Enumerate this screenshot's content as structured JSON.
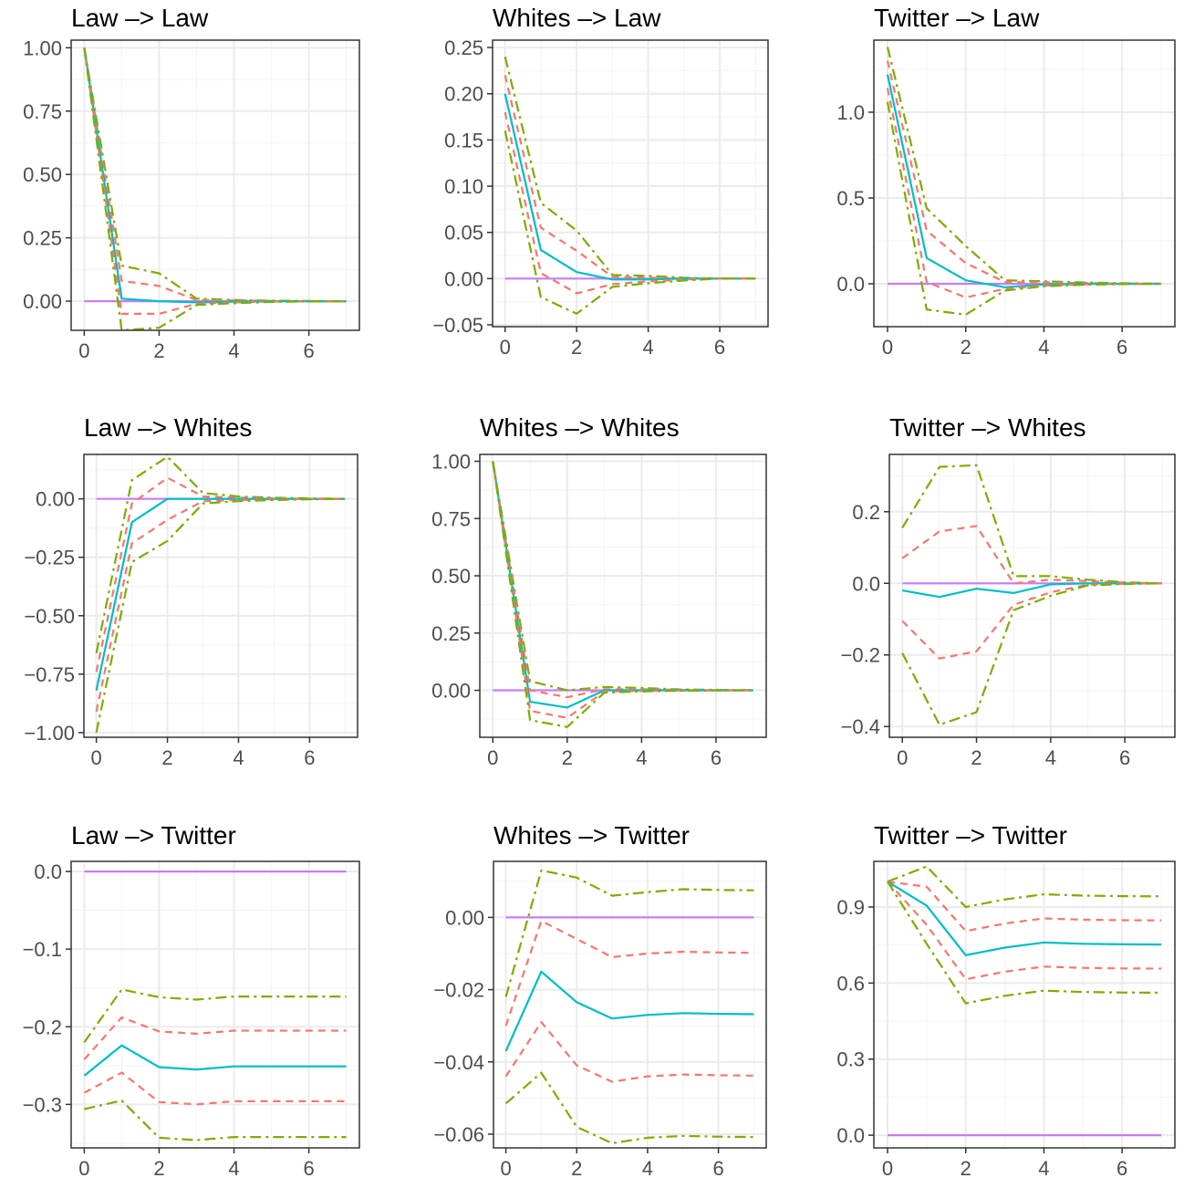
{
  "chart_data": [
    {
      "type": "line",
      "title": "Law –> Law",
      "x": [
        0,
        1,
        2,
        3,
        4,
        5,
        6,
        7
      ],
      "xticks": [
        0,
        2,
        4,
        6
      ],
      "xlim": [
        -0.35,
        7.35
      ],
      "ylim": [
        -0.115,
        1.03
      ],
      "yticks": [
        1.0,
        0.75,
        0.5,
        0.25,
        0.0
      ],
      "ytick_labels": [
        "1.00",
        "0.75",
        "0.50",
        "0.25",
        "0.00"
      ],
      "series": [
        {
          "role": "zero",
          "values": [
            0,
            0,
            0,
            0,
            0,
            0,
            0,
            0
          ]
        },
        {
          "role": "upper-outer",
          "values": [
            1.0,
            0.14,
            0.11,
            0.01,
            0.005,
            0.002,
            0.001,
            0
          ]
        },
        {
          "role": "upper-inner",
          "values": [
            1.0,
            0.08,
            0.06,
            0.005,
            0.003,
            0.001,
            0,
            0
          ]
        },
        {
          "role": "point",
          "values": [
            1.0,
            0.01,
            0,
            -0.005,
            -0.002,
            0,
            0,
            0
          ]
        },
        {
          "role": "lower-inner",
          "values": [
            1.0,
            -0.05,
            -0.05,
            -0.01,
            -0.005,
            -0.002,
            -0.001,
            0
          ]
        },
        {
          "role": "lower-outer",
          "values": [
            1.0,
            -0.115,
            -0.105,
            -0.015,
            -0.008,
            -0.003,
            -0.001,
            0
          ]
        }
      ]
    },
    {
      "type": "line",
      "title": "Whites –> Law",
      "x": [
        0,
        1,
        2,
        3,
        4,
        5,
        6,
        7
      ],
      "xticks": [
        0,
        2,
        4,
        6
      ],
      "xlim": [
        -0.35,
        7.35
      ],
      "ylim": [
        -0.052,
        0.258
      ],
      "yticks": [
        0.25,
        0.2,
        0.15,
        0.1,
        0.05,
        0.0,
        -0.05
      ],
      "ytick_labels": [
        "0.25",
        "0.20",
        "0.15",
        "0.10",
        "0.05",
        "0.00",
        "−0.05"
      ],
      "series": [
        {
          "role": "zero",
          "values": [
            0,
            0,
            0,
            0,
            0,
            0,
            0,
            0
          ]
        },
        {
          "role": "upper-outer",
          "values": [
            0.24,
            0.082,
            0.052,
            0.004,
            0.003,
            0.001,
            0,
            0
          ]
        },
        {
          "role": "upper-inner",
          "values": [
            0.22,
            0.055,
            0.03,
            0.002,
            0.001,
            0,
            0,
            0
          ]
        },
        {
          "role": "point",
          "values": [
            0.2,
            0.031,
            0.007,
            -0.001,
            -0.001,
            0,
            0,
            0
          ]
        },
        {
          "role": "lower-inner",
          "values": [
            0.18,
            0.006,
            -0.016,
            -0.006,
            -0.003,
            -0.001,
            0,
            0
          ]
        },
        {
          "role": "lower-outer",
          "values": [
            0.16,
            -0.02,
            -0.038,
            -0.009,
            -0.005,
            -0.002,
            0,
            0
          ]
        }
      ]
    },
    {
      "type": "line",
      "title": "Twitter –> Law",
      "x": [
        0,
        1,
        2,
        3,
        4,
        5,
        6,
        7
      ],
      "xticks": [
        0,
        2,
        4,
        6
      ],
      "xlim": [
        -0.35,
        7.35
      ],
      "ylim": [
        -0.25,
        1.42
      ],
      "yticks": [
        1.0,
        0.5,
        0.0
      ],
      "ytick_labels": [
        "1.0",
        "0.5",
        "0.0"
      ],
      "series": [
        {
          "role": "zero",
          "values": [
            0,
            0,
            0,
            0,
            0,
            0,
            0,
            0
          ]
        },
        {
          "role": "upper-outer",
          "values": [
            1.38,
            0.44,
            0.22,
            0.02,
            0.015,
            0.008,
            0.003,
            0
          ]
        },
        {
          "role": "upper-inner",
          "values": [
            1.3,
            0.31,
            0.12,
            0.01,
            0.008,
            0.004,
            0.001,
            0
          ]
        },
        {
          "role": "point",
          "values": [
            1.22,
            0.15,
            0.02,
            -0.02,
            -0.005,
            0,
            0,
            0
          ]
        },
        {
          "role": "lower-inner",
          "values": [
            1.14,
            0.01,
            -0.08,
            -0.03,
            -0.01,
            -0.004,
            -0.001,
            0
          ]
        },
        {
          "role": "lower-outer",
          "values": [
            1.06,
            -0.15,
            -0.18,
            -0.04,
            -0.015,
            -0.006,
            -0.002,
            0
          ]
        }
      ]
    },
    {
      "type": "line",
      "title": "Law –> Whites",
      "x": [
        0,
        1,
        2,
        3,
        4,
        5,
        6,
        7
      ],
      "xticks": [
        0,
        2,
        4,
        6
      ],
      "xlim": [
        -0.35,
        7.35
      ],
      "ylim": [
        -1.02,
        0.19
      ],
      "yticks": [
        0.0,
        -0.25,
        -0.5,
        -0.75,
        -1.0
      ],
      "ytick_labels": [
        "0.00",
        "−0.25",
        "−0.50",
        "−0.75",
        "−1.00"
      ],
      "series": [
        {
          "role": "zero",
          "values": [
            0,
            0,
            0,
            0,
            0,
            0,
            0,
            0
          ]
        },
        {
          "role": "upper-outer",
          "values": [
            -0.66,
            0.08,
            0.18,
            0.025,
            0.01,
            0.005,
            0.002,
            0
          ]
        },
        {
          "role": "upper-inner",
          "values": [
            -0.74,
            -0.02,
            0.09,
            0.01,
            0.005,
            0.002,
            0,
            0
          ]
        },
        {
          "role": "point",
          "values": [
            -0.82,
            -0.1,
            0.0,
            0.0,
            0.0,
            0,
            0,
            0
          ]
        },
        {
          "role": "lower-inner",
          "values": [
            -0.91,
            -0.19,
            -0.09,
            -0.01,
            -0.005,
            -0.002,
            0,
            0
          ]
        },
        {
          "role": "lower-outer",
          "values": [
            -1.0,
            -0.27,
            -0.18,
            -0.02,
            -0.01,
            -0.005,
            -0.002,
            0
          ]
        }
      ]
    },
    {
      "type": "line",
      "title": "Whites –> Whites",
      "x": [
        0,
        1,
        2,
        3,
        4,
        5,
        6,
        7
      ],
      "xticks": [
        0,
        2,
        4,
        6
      ],
      "xlim": [
        -0.35,
        7.35
      ],
      "ylim": [
        -0.205,
        1.03
      ],
      "yticks": [
        1.0,
        0.75,
        0.5,
        0.25,
        0.0
      ],
      "ytick_labels": [
        "1.00",
        "0.75",
        "0.50",
        "0.25",
        "0.00"
      ],
      "series": [
        {
          "role": "zero",
          "values": [
            0,
            0,
            0,
            0,
            0,
            0,
            0,
            0
          ]
        },
        {
          "role": "upper-outer",
          "values": [
            1.0,
            0.04,
            0.0,
            0.015,
            0.01,
            0.004,
            0.002,
            0
          ]
        },
        {
          "role": "upper-inner",
          "values": [
            1.0,
            0.0,
            -0.03,
            0.005,
            0.005,
            0.002,
            0,
            0
          ]
        },
        {
          "role": "point",
          "values": [
            1.0,
            -0.05,
            -0.075,
            0.0,
            0.0,
            0,
            0,
            0
          ]
        },
        {
          "role": "lower-inner",
          "values": [
            1.0,
            -0.09,
            -0.12,
            -0.005,
            -0.003,
            -0.001,
            0,
            0
          ]
        },
        {
          "role": "lower-outer",
          "values": [
            1.0,
            -0.13,
            -0.16,
            -0.01,
            -0.005,
            -0.002,
            -0.001,
            0
          ]
        }
      ]
    },
    {
      "type": "line",
      "title": "Twitter –> Whites",
      "x": [
        0,
        1,
        2,
        3,
        4,
        5,
        6,
        7
      ],
      "xticks": [
        0,
        2,
        4,
        6
      ],
      "xlim": [
        -0.35,
        7.35
      ],
      "ylim": [
        -0.43,
        0.36
      ],
      "yticks": [
        0.2,
        0.0,
        -0.2,
        -0.4
      ],
      "ytick_labels": [
        "0.2",
        "0.0",
        "−0.2",
        "−0.4"
      ],
      "series": [
        {
          "role": "zero",
          "values": [
            0,
            0,
            0,
            0,
            0,
            0,
            0,
            0
          ]
        },
        {
          "role": "upper-outer",
          "values": [
            0.155,
            0.325,
            0.33,
            0.02,
            0.02,
            0.01,
            0.003,
            0
          ]
        },
        {
          "role": "upper-inner",
          "values": [
            0.07,
            0.145,
            0.16,
            0.0,
            0.01,
            0.006,
            0.002,
            0
          ]
        },
        {
          "role": "point",
          "values": [
            -0.02,
            -0.038,
            -0.015,
            -0.027,
            -0.003,
            0,
            0,
            0
          ]
        },
        {
          "role": "lower-inner",
          "values": [
            -0.105,
            -0.21,
            -0.19,
            -0.06,
            -0.025,
            -0.004,
            -0.001,
            0
          ]
        },
        {
          "role": "lower-outer",
          "values": [
            -0.195,
            -0.395,
            -0.36,
            -0.075,
            -0.035,
            -0.006,
            -0.002,
            0
          ]
        }
      ]
    },
    {
      "type": "line",
      "title": "Law –> Twitter",
      "x": [
        0,
        1,
        2,
        3,
        4,
        5,
        6,
        7
      ],
      "xticks": [
        0,
        2,
        4,
        6
      ],
      "xlim": [
        -0.35,
        7.35
      ],
      "ylim": [
        -0.356,
        0.013
      ],
      "yticks": [
        0.0,
        -0.1,
        -0.2,
        -0.3
      ],
      "ytick_labels": [
        "0.0",
        "−0.1",
        "−0.2",
        "−0.3"
      ],
      "series": [
        {
          "role": "zero",
          "values": [
            0,
            0,
            0,
            0,
            0,
            0,
            0,
            0
          ]
        },
        {
          "role": "upper-outer",
          "values": [
            -0.22,
            -0.152,
            -0.162,
            -0.165,
            -0.161,
            -0.161,
            -0.161,
            -0.161
          ]
        },
        {
          "role": "upper-inner",
          "values": [
            -0.242,
            -0.188,
            -0.206,
            -0.209,
            -0.205,
            -0.205,
            -0.205,
            -0.205
          ]
        },
        {
          "role": "point",
          "values": [
            -0.263,
            -0.224,
            -0.252,
            -0.255,
            -0.251,
            -0.251,
            -0.251,
            -0.251
          ]
        },
        {
          "role": "lower-inner",
          "values": [
            -0.285,
            -0.259,
            -0.297,
            -0.3,
            -0.296,
            -0.296,
            -0.296,
            -0.296
          ]
        },
        {
          "role": "lower-outer",
          "values": [
            -0.306,
            -0.295,
            -0.343,
            -0.346,
            -0.342,
            -0.342,
            -0.342,
            -0.342
          ]
        }
      ]
    },
    {
      "type": "line",
      "title": "Whites –> Twitter",
      "x": [
        0,
        1,
        2,
        3,
        4,
        5,
        6,
        7
      ],
      "xticks": [
        0,
        2,
        4,
        6
      ],
      "xlim": [
        -0.35,
        7.35
      ],
      "ylim": [
        -0.0638,
        0.0155
      ],
      "yticks": [
        0.0,
        -0.02,
        -0.04,
        -0.06
      ],
      "ytick_labels": [
        "0.00",
        "−0.02",
        "−0.04",
        "−0.06"
      ],
      "series": [
        {
          "role": "zero",
          "values": [
            0,
            0,
            0,
            0,
            0,
            0,
            0,
            0
          ]
        },
        {
          "role": "upper-outer",
          "values": [
            -0.022,
            0.013,
            0.011,
            0.006,
            0.007,
            0.0078,
            0.0076,
            0.0075
          ]
        },
        {
          "role": "upper-inner",
          "values": [
            -0.03,
            -0.001,
            -0.006,
            -0.011,
            -0.01,
            -0.0095,
            -0.0097,
            -0.0098
          ]
        },
        {
          "role": "point",
          "values": [
            -0.037,
            -0.015,
            -0.0235,
            -0.028,
            -0.027,
            -0.0265,
            -0.0267,
            -0.0268
          ]
        },
        {
          "role": "lower-inner",
          "values": [
            -0.044,
            -0.029,
            -0.041,
            -0.0455,
            -0.044,
            -0.0435,
            -0.0437,
            -0.0438
          ]
        },
        {
          "role": "lower-outer",
          "values": [
            -0.0515,
            -0.043,
            -0.058,
            -0.0625,
            -0.061,
            -0.0605,
            -0.0607,
            -0.0608
          ]
        }
      ]
    },
    {
      "type": "line",
      "title": "Twitter –> Twitter",
      "x": [
        0,
        1,
        2,
        3,
        4,
        5,
        6,
        7
      ],
      "xticks": [
        0,
        2,
        4,
        6
      ],
      "xlim": [
        -0.35,
        7.35
      ],
      "ylim": [
        -0.05,
        1.08
      ],
      "yticks": [
        0.9,
        0.6,
        0.3,
        0.0
      ],
      "ytick_labels": [
        "0.9",
        "0.6",
        "0.3",
        "0.0"
      ],
      "series": [
        {
          "role": "zero",
          "values": [
            0,
            0,
            0,
            0,
            0,
            0,
            0,
            0
          ]
        },
        {
          "role": "upper-outer",
          "values": [
            1.0,
            1.06,
            0.9,
            0.93,
            0.95,
            0.945,
            0.943,
            0.942
          ]
        },
        {
          "role": "upper-inner",
          "values": [
            1.0,
            0.98,
            0.805,
            0.835,
            0.855,
            0.85,
            0.848,
            0.847
          ]
        },
        {
          "role": "point",
          "values": [
            1.0,
            0.905,
            0.71,
            0.74,
            0.76,
            0.755,
            0.753,
            0.752
          ]
        },
        {
          "role": "lower-inner",
          "values": [
            1.0,
            0.83,
            0.615,
            0.645,
            0.665,
            0.66,
            0.658,
            0.657
          ]
        },
        {
          "role": "lower-outer",
          "values": [
            1.0,
            0.755,
            0.52,
            0.55,
            0.57,
            0.565,
            0.563,
            0.562
          ]
        }
      ]
    }
  ],
  "style": {
    "zero_color": "#c77cff",
    "point_color": "#00bfc4",
    "inner_color": "#f8766d",
    "outer_color": "#7cae00",
    "grid_major": "#ebebeb",
    "grid_minor": "#f5f5f5",
    "panel_border": "#333333",
    "tick_text": "#4d4d4d"
  }
}
